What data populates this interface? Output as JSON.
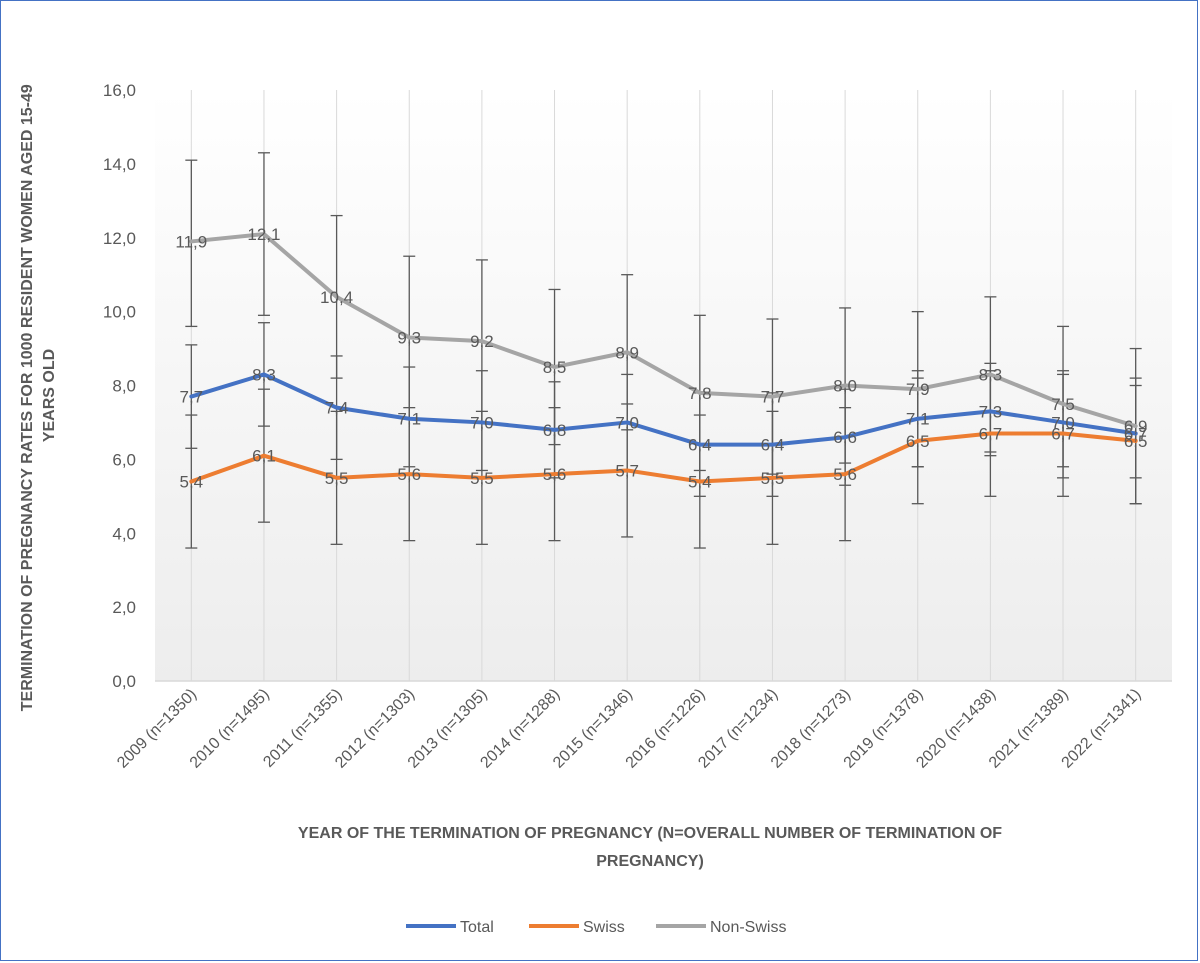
{
  "chart_data": {
    "type": "line",
    "title": "",
    "xlabel": "YEAR OF THE TERMINATION OF PREGNANCY (N=OVERALL NUMBER OF TERMINATION OF PREGNANCY)",
    "xlabel_lines": [
      "YEAR OF THE TERMINATION OF PREGNANCY (N=OVERALL NUMBER OF TERMINATION OF",
      "PREGNANCY)"
    ],
    "ylabel": "TERMINATION OF PREGNANCY RATES FOR 1000 RESIDENT WOMEN AGED 15-49 YEARS OLD",
    "ylabel_lines": [
      "TERMINATION OF PREGNANCY RATES FOR 1000 RESIDENT WOMEN AGED 15-49",
      "YEARS OLD"
    ],
    "ylim": [
      0,
      16
    ],
    "y_ticks": [
      "0,0",
      "2,0",
      "4,0",
      "6,0",
      "8,0",
      "10,0",
      "12,0",
      "14,0",
      "16,0"
    ],
    "y_tick_values": [
      0,
      2,
      4,
      6,
      8,
      10,
      12,
      14,
      16
    ],
    "grid": "vertical category lines",
    "legend_position": "bottom",
    "categories": [
      "2009 (n=1350)",
      "2010 (n=1495)",
      "2011 (n=1355)",
      "2012 (n=1303)",
      "2013 (n=1305)",
      "2014 (n=1288)",
      "2015 (n=1346)",
      "2016 (n=1226)",
      "2017 (n=1234)",
      "2018 (n=1273)",
      "2019 (n=1378)",
      "2020 (n=1438)",
      "2021 (n=1389)",
      "2022 (n=1341)"
    ],
    "series": [
      {
        "name": "Total",
        "color": "#4472C4",
        "values": [
          7.7,
          8.3,
          7.4,
          7.1,
          7.0,
          6.8,
          7.0,
          6.4,
          6.4,
          6.6,
          7.1,
          7.3,
          7.0,
          6.7
        ],
        "labels": [
          "7,7",
          "8,3",
          "7,4",
          "7,1",
          "7,0",
          "6,8",
          "7,0",
          "6,4",
          "6,4",
          "6,6",
          "7,1",
          "7,3",
          "7,0",
          "6,7"
        ],
        "error_low": [
          6.3,
          6.9,
          6.0,
          5.8,
          5.7,
          5.5,
          5.7,
          5.0,
          5.0,
          5.3,
          5.8,
          6.1,
          5.8,
          5.5
        ],
        "error_high": [
          9.1,
          9.7,
          8.8,
          8.5,
          8.4,
          8.1,
          8.3,
          7.8,
          7.8,
          7.9,
          8.4,
          8.6,
          8.3,
          8.0
        ]
      },
      {
        "name": "Swiss",
        "color": "#ED7D31",
        "values": [
          5.4,
          6.1,
          5.5,
          5.6,
          5.5,
          5.6,
          5.7,
          5.4,
          5.5,
          5.6,
          6.5,
          6.7,
          6.7,
          6.5
        ],
        "labels": [
          "5,4",
          "6,1",
          "5,5",
          "5,6",
          "5,5",
          "5,6",
          "5,7",
          "5,4",
          "5,5",
          "5,6",
          "6,5",
          "6,7",
          "6,7",
          "6,5"
        ],
        "error_low": [
          3.6,
          4.3,
          3.7,
          3.8,
          3.7,
          3.8,
          3.9,
          3.6,
          3.7,
          3.8,
          4.8,
          5.0,
          5.0,
          4.8
        ],
        "error_high": [
          7.2,
          7.9,
          7.3,
          7.4,
          7.3,
          7.4,
          7.5,
          7.2,
          7.3,
          7.4,
          8.2,
          8.4,
          8.4,
          8.2
        ]
      },
      {
        "name": "Non-Swiss",
        "color": "#A5A5A5",
        "values": [
          11.9,
          12.1,
          10.4,
          9.3,
          9.2,
          8.5,
          8.9,
          7.8,
          7.7,
          8.0,
          7.9,
          8.3,
          7.5,
          6.9
        ],
        "labels": [
          "11,9",
          "12,1",
          "10,4",
          "9,3",
          "9,2",
          "8,5",
          "8,9",
          "7,8",
          "7,7",
          "8,0",
          "7,9",
          "8,3",
          "7,5",
          "6,9"
        ],
        "error_low": [
          9.6,
          9.9,
          8.2,
          7.1,
          7.0,
          6.4,
          6.8,
          5.7,
          5.6,
          5.9,
          5.8,
          6.2,
          5.5,
          4.8
        ],
        "error_high": [
          14.1,
          14.3,
          12.6,
          11.5,
          11.4,
          10.6,
          11.0,
          9.9,
          9.8,
          10.1,
          10.0,
          10.4,
          9.6,
          9.0
        ]
      }
    ]
  },
  "legend": {
    "items": [
      {
        "label": "Total",
        "color": "#4472C4"
      },
      {
        "label": "Swiss",
        "color": "#ED7D31"
      },
      {
        "label": "Non-Swiss",
        "color": "#A5A5A5"
      }
    ]
  }
}
